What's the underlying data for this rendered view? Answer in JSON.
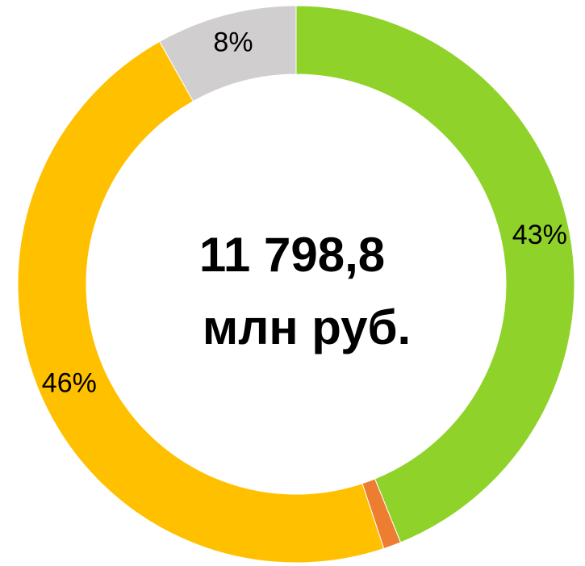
{
  "chart_data": {
    "type": "donut",
    "values": [
      43,
      1,
      46,
      8
    ],
    "value_labels": [
      "43%",
      null,
      "46%",
      "8%"
    ],
    "colors": [
      "#8fd22a",
      "#ed7d31",
      "#ffc000",
      "#d0cece"
    ],
    "annotations": [
      "11 798,8",
      "млн руб."
    ]
  }
}
